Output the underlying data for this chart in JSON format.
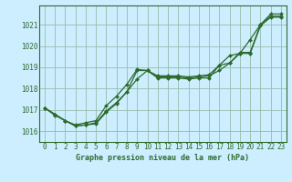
{
  "title": "Graphe pression niveau de la mer (hPa)",
  "bg_color": "#cceeff",
  "grid_color": "#99bbaa",
  "line_color": "#2d6b2d",
  "marker_color": "#2d6b2d",
  "ylim": [
    1015.5,
    1021.9
  ],
  "xlim": [
    -0.5,
    23.5
  ],
  "yticks": [
    1016,
    1017,
    1018,
    1019,
    1020,
    1021
  ],
  "xticks": [
    0,
    1,
    2,
    3,
    4,
    5,
    6,
    7,
    8,
    9,
    10,
    11,
    12,
    13,
    14,
    15,
    16,
    17,
    18,
    19,
    20,
    21,
    22,
    23
  ],
  "series": [
    [
      1017.1,
      1016.8,
      1016.5,
      1016.3,
      1016.4,
      1016.5,
      1017.2,
      1017.65,
      1018.2,
      1018.9,
      1018.85,
      1018.6,
      1018.6,
      1018.6,
      1018.55,
      1018.6,
      1018.65,
      1019.1,
      1019.55,
      1019.65,
      1020.3,
      1021.0,
      1021.5,
      1021.5
    ],
    [
      1017.1,
      1016.8,
      1016.5,
      1016.25,
      1016.3,
      1016.4,
      1016.95,
      1017.35,
      1017.85,
      1018.45,
      1018.85,
      1018.55,
      1018.55,
      1018.55,
      1018.5,
      1018.55,
      1018.6,
      1018.85,
      1019.2,
      1019.7,
      1019.7,
      1021.0,
      1021.4,
      1021.4
    ],
    [
      1017.1,
      1016.75,
      1016.5,
      1016.25,
      1016.3,
      1016.35,
      1016.9,
      1017.3,
      1017.85,
      1018.85,
      1018.85,
      1018.5,
      1018.5,
      1018.5,
      1018.45,
      1018.5,
      1018.5,
      1019.1,
      1019.2,
      1019.65,
      1019.65,
      1020.95,
      1021.35,
      1021.35
    ]
  ]
}
